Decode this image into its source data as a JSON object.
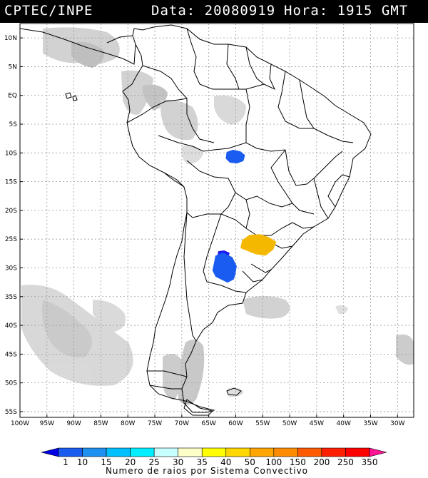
{
  "header": {
    "source": "CPTEC/INPE",
    "date_label": "Data: 20080919",
    "time_label": "Hora: 1915 GMT"
  },
  "map": {
    "lat_labels": [
      "10N",
      "5N",
      "EQ",
      "5S",
      "10S",
      "15S",
      "20S",
      "25S",
      "30S",
      "35S",
      "40S",
      "45S",
      "50S",
      "55S"
    ],
    "lon_labels": [
      "100W",
      "95W",
      "90W",
      "85W",
      "80W",
      "75W",
      "70W",
      "65W",
      "60W",
      "55W",
      "50W",
      "45W",
      "40W",
      "35W",
      "30W"
    ],
    "lat_values": [
      10,
      5,
      0,
      -5,
      -10,
      -15,
      -20,
      -25,
      -30,
      -35,
      -40,
      -45,
      -50,
      -55
    ],
    "lon_values": [
      -100,
      -95,
      -90,
      -85,
      -80,
      -75,
      -70,
      -65,
      -60,
      -55,
      -50,
      -45,
      -40,
      -35,
      -30
    ],
    "extent": {
      "lon_min": -100,
      "lon_max": -27,
      "lat_min": -56,
      "lat_max": 12.5
    },
    "grid": true,
    "land_color": "#ffffff",
    "cloud_color": "#c8c8c8",
    "border_color": "#000000"
  },
  "convective_systems": [
    {
      "name": "system-central-brazil",
      "lon": -60.0,
      "lat": -10.7,
      "color": "#1a5cf0",
      "class_value": 15
    },
    {
      "name": "system-paraguay",
      "lon": -55.8,
      "lat": -26.0,
      "color": "#f5b800",
      "class_value": 50
    },
    {
      "name": "system-argentina-small",
      "lon": -62.2,
      "lat": -27.7,
      "color": "#1a1af5",
      "class_value": 10
    },
    {
      "name": "system-argentina-large",
      "lon": -61.8,
      "lat": -30.2,
      "color": "#1a5cf0",
      "class_value": 15
    }
  ],
  "legend": {
    "title": "Numero de raios por Sistema Convectivo",
    "labels": [
      "1",
      "10",
      "15",
      "20",
      "25",
      "30",
      "35",
      "40",
      "50",
      "100",
      "150",
      "200",
      "250",
      "350"
    ],
    "colors": [
      "#0000e6",
      "#1a5cf0",
      "#1e90f0",
      "#00bfff",
      "#00eeff",
      "#c8ffff",
      "#ffffc8",
      "#ffff00",
      "#ffd700",
      "#ffa500",
      "#ff8c00",
      "#ff5a00",
      "#ff2000",
      "#ff0000",
      "#ff1493"
    ]
  }
}
